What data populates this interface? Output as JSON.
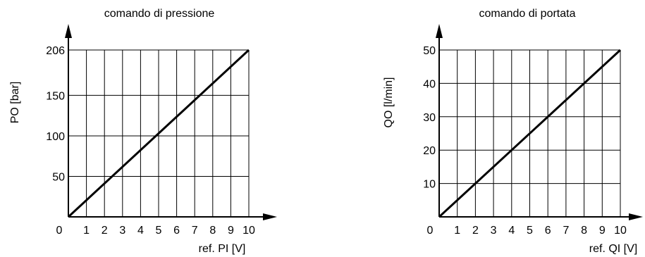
{
  "chart_data": [
    {
      "type": "line",
      "title": "comando di pressione",
      "xlabel": "ref. PI [V]",
      "ylabel": "PO [bar]",
      "xlim": [
        0,
        10
      ],
      "ylim": [
        0,
        206
      ],
      "grid": true,
      "x_ticks": [
        "0",
        "1",
        "2",
        "3",
        "4",
        "5",
        "6",
        "7",
        "8",
        "9",
        "10"
      ],
      "y_ticks": [
        {
          "value": 50,
          "label": "50"
        },
        {
          "value": 100,
          "label": "100"
        },
        {
          "value": 150,
          "label": "150"
        },
        {
          "value": 206,
          "label": "206"
        }
      ],
      "series": [
        {
          "x": [
            0,
            10
          ],
          "y": [
            0,
            206
          ]
        }
      ]
    },
    {
      "type": "line",
      "title": "comando di portata",
      "xlabel": "ref. QI [V]",
      "ylabel": "QO [l/min]",
      "xlim": [
        0,
        10
      ],
      "ylim": [
        0,
        50
      ],
      "grid": true,
      "x_ticks": [
        "0",
        "1",
        "2",
        "3",
        "4",
        "5",
        "6",
        "7",
        "8",
        "9",
        "10"
      ],
      "y_ticks": [
        {
          "value": 10,
          "label": "10"
        },
        {
          "value": 20,
          "label": "20"
        },
        {
          "value": 30,
          "label": "30"
        },
        {
          "value": 40,
          "label": "40"
        },
        {
          "value": 50,
          "label": "50"
        }
      ],
      "series": [
        {
          "x": [
            0,
            10
          ],
          "y": [
            0,
            50
          ]
        }
      ]
    }
  ]
}
